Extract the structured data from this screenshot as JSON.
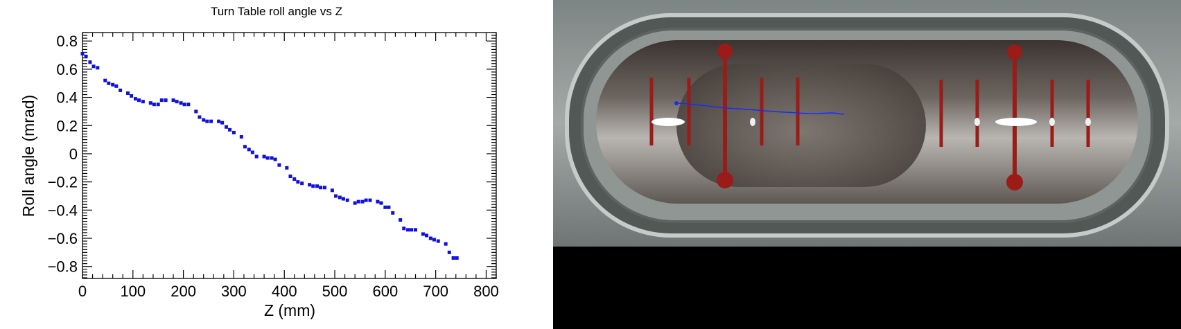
{
  "chart_data": {
    "type": "scatter",
    "title": "Turn Table roll angle vs Z",
    "xlabel": "Z (mm)",
    "ylabel": "Roll angle (mrad)",
    "xlim": [
      0,
      820
    ],
    "ylim": [
      -0.885,
      0.86
    ],
    "x_ticks": [
      0,
      100,
      200,
      300,
      400,
      500,
      600,
      700,
      800
    ],
    "x_tick_labels": [
      "0",
      "100",
      "200",
      "300",
      "400",
      "500",
      "600",
      "700",
      "800"
    ],
    "y_ticks": [
      -0.8,
      -0.6,
      -0.4,
      -0.2,
      0,
      0.2,
      0.4,
      0.6,
      0.8
    ],
    "y_tick_labels": [
      "−0.8",
      "−0.6",
      "−0.4",
      "−0.2",
      "0",
      "0.2",
      "0.4",
      "0.6",
      "0.8"
    ],
    "grid": false,
    "marker_color": "#1010e0",
    "x": [
      0,
      7,
      15,
      22,
      30,
      45,
      52,
      60,
      67,
      75,
      90,
      97,
      105,
      112,
      120,
      135,
      142,
      150,
      157,
      165,
      180,
      187,
      195,
      202,
      210,
      225,
      232,
      240,
      247,
      255,
      270,
      277,
      285,
      292,
      300,
      315,
      322,
      330,
      337,
      345,
      360,
      367,
      375,
      382,
      390,
      405,
      412,
      420,
      427,
      435,
      450,
      457,
      465,
      472,
      480,
      495,
      502,
      510,
      517,
      525,
      540,
      547,
      555,
      562,
      570,
      585,
      592,
      600,
      607,
      615,
      630,
      637,
      645,
      652,
      660,
      675,
      682,
      690,
      697,
      705,
      720,
      727,
      735,
      742
    ],
    "y": [
      0.71,
      0.69,
      0.65,
      0.62,
      0.61,
      0.52,
      0.5,
      0.49,
      0.48,
      0.45,
      0.43,
      0.41,
      0.39,
      0.38,
      0.37,
      0.36,
      0.35,
      0.35,
      0.38,
      0.38,
      0.38,
      0.37,
      0.36,
      0.35,
      0.35,
      0.3,
      0.26,
      0.24,
      0.23,
      0.23,
      0.23,
      0.22,
      0.19,
      0.17,
      0.15,
      0.12,
      0.05,
      0.03,
      0.01,
      -0.02,
      -0.02,
      -0.03,
      -0.03,
      -0.04,
      -0.08,
      -0.1,
      -0.16,
      -0.18,
      -0.2,
      -0.21,
      -0.22,
      -0.23,
      -0.23,
      -0.24,
      -0.24,
      -0.26,
      -0.3,
      -0.31,
      -0.32,
      -0.33,
      -0.35,
      -0.34,
      -0.34,
      -0.33,
      -0.33,
      -0.34,
      -0.35,
      -0.38,
      -0.38,
      -0.42,
      -0.47,
      -0.53,
      -0.54,
      -0.54,
      -0.54,
      -0.57,
      -0.58,
      -0.6,
      -0.61,
      -0.62,
      -0.64,
      -0.7,
      -0.74,
      -0.74
    ]
  },
  "photo": {
    "description_icon": "bubble-level-photo-icon",
    "trace_color": "#1a2aff",
    "vial_mark_color": "#9a1b17"
  }
}
